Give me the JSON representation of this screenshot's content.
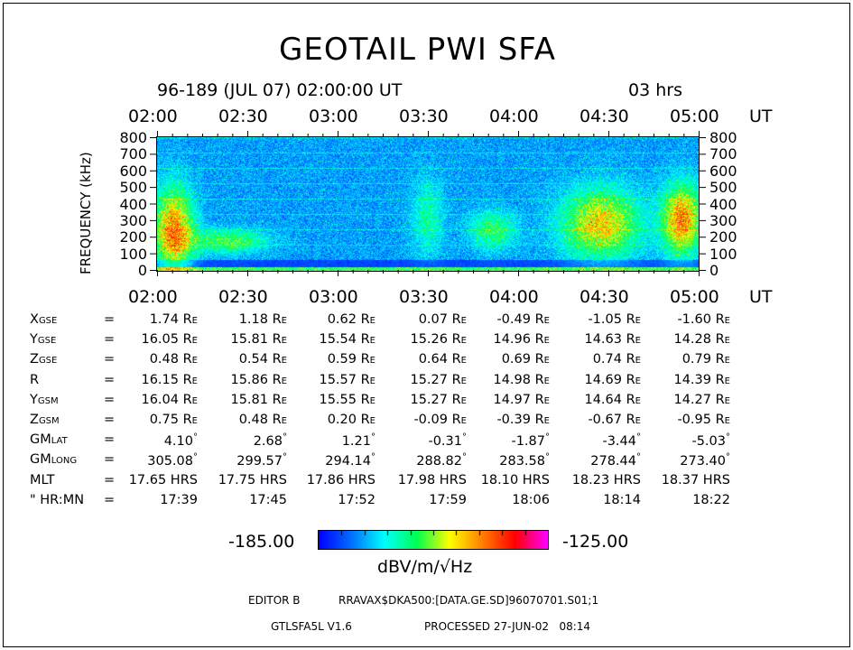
{
  "title": "GEOTAIL PWI SFA",
  "header": {
    "date_time": "96-189 (JUL 07) 02:00:00 UT",
    "duration": "03 hrs"
  },
  "chart_data": {
    "type": "heatmap",
    "x": [
      "02:00",
      "02:30",
      "03:00",
      "03:30",
      "04:00",
      "04:30",
      "05:00"
    ],
    "x_unit": "UT",
    "ylabel": "FREQUENCY (kHz)",
    "yticks": [
      0,
      100,
      200,
      300,
      400,
      500,
      600,
      700,
      800
    ],
    "ylim": [
      0,
      800
    ],
    "colorbar": {
      "min": "-185.00",
      "max": "-125.00",
      "label": "dBV/m/√Hz"
    },
    "colors": [
      "#0000ff",
      "#0070ff",
      "#00ffff",
      "#00ff50",
      "#ffff00",
      "#ff8000",
      "#ff0000",
      "#ff00ff"
    ]
  },
  "ephemeris": {
    "rows": [
      {
        "label": "X",
        "sub": "GSE",
        "eq": "=",
        "values": [
          "1.74",
          "1.18",
          "0.62",
          "0.07",
          "-0.49",
          "-1.05",
          "-1.60"
        ],
        "unit": "R",
        "unit_sub": "E"
      },
      {
        "label": "Y",
        "sub": "GSE",
        "eq": "=",
        "values": [
          "16.05",
          "15.81",
          "15.54",
          "15.26",
          "14.96",
          "14.63",
          "14.28"
        ],
        "unit": "R",
        "unit_sub": "E"
      },
      {
        "label": "Z",
        "sub": "GSE",
        "eq": "=",
        "values": [
          "0.48",
          "0.54",
          "0.59",
          "0.64",
          "0.69",
          "0.74",
          "0.79"
        ],
        "unit": "R",
        "unit_sub": "E"
      },
      {
        "label": "R",
        "sub": "",
        "eq": "=",
        "values": [
          "16.15",
          "15.86",
          "15.57",
          "15.27",
          "14.98",
          "14.69",
          "14.39"
        ],
        "unit": "R",
        "unit_sub": "E"
      },
      {
        "label": "Y",
        "sub": "GSM",
        "eq": "=",
        "values": [
          "16.04",
          "15.81",
          "15.55",
          "15.27",
          "14.97",
          "14.64",
          "14.27"
        ],
        "unit": "R",
        "unit_sub": "E"
      },
      {
        "label": "Z",
        "sub": "GSM",
        "eq": "=",
        "values": [
          "0.75",
          "0.48",
          "0.20",
          "-0.09",
          "-0.39",
          "-0.67",
          "-0.95"
        ],
        "unit": "R",
        "unit_sub": "E"
      },
      {
        "label": "GM",
        "sub": "LAT",
        "eq": "=",
        "values": [
          "4.10",
          "2.68",
          "1.21",
          "-0.31",
          "-1.87",
          "-3.44",
          "-5.03"
        ],
        "unit": "°",
        "unit_sub": ""
      },
      {
        "label": "GM",
        "sub": "LONG",
        "eq": "=",
        "values": [
          "305.08",
          "299.57",
          "294.14",
          "288.82",
          "283.58",
          "278.44",
          "273.40"
        ],
        "unit": "°",
        "unit_sub": ""
      },
      {
        "label": "MLT",
        "sub": "",
        "eq": "=",
        "values": [
          "17.65",
          "17.75",
          "17.86",
          "17.98",
          "18.10",
          "18.23",
          "18.37"
        ],
        "unit": "HRS",
        "unit_sub": ""
      },
      {
        "label": "\" HR:MN",
        "sub": "",
        "eq": "=",
        "values": [
          "17:39",
          "17:45",
          "17:52",
          "17:59",
          "18:06",
          "18:14",
          "18:22"
        ],
        "unit": "",
        "unit_sub": ""
      }
    ]
  },
  "footer": {
    "editor_label": "EDITOR B",
    "file_path": "RRAVAX$DKA500:[DATA.GE.SD]96070701.S01;1",
    "program": "GTLSFA5L V1.6",
    "processed": "PROCESSED 27-JUN-02   08:14"
  }
}
